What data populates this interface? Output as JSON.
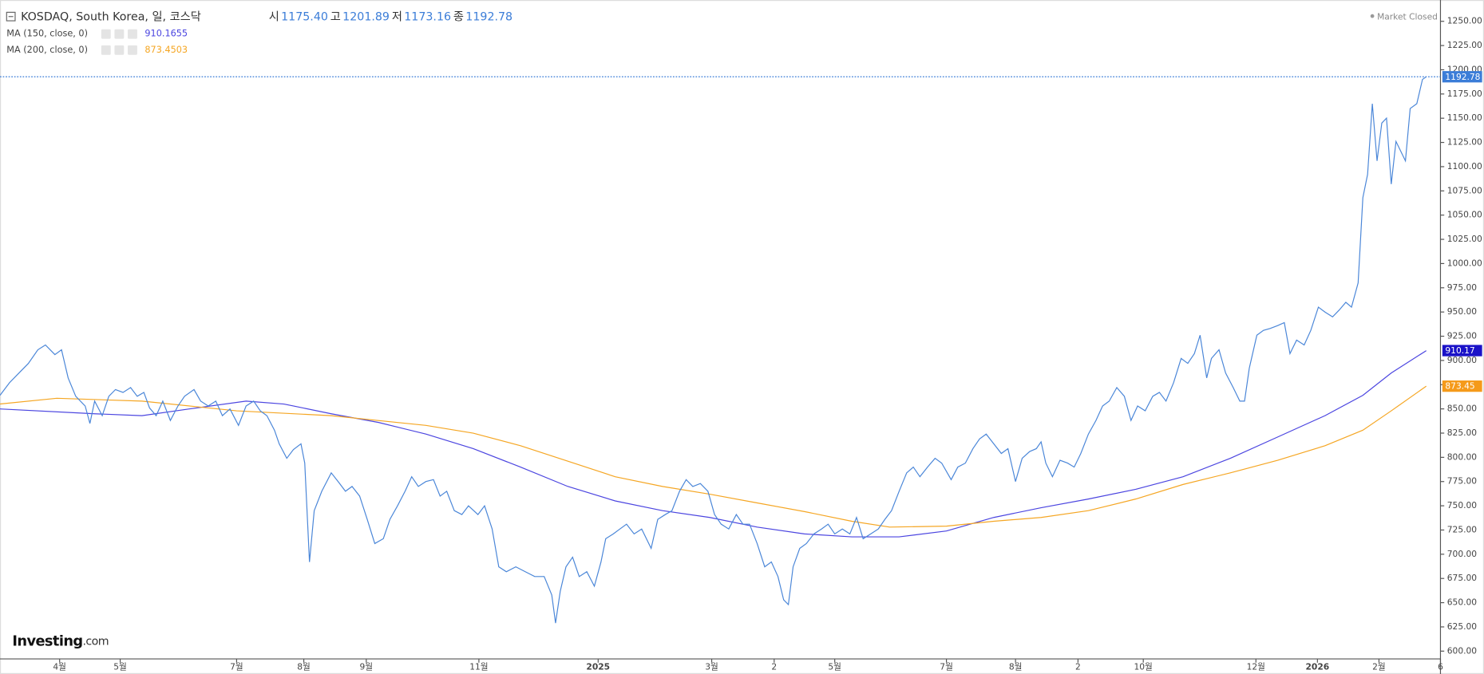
{
  "chart_data": {
    "type": "line",
    "title": "KOSDAQ, South Korea, 일, 코스닥",
    "quote": [
      {
        "label": "시",
        "value": "1175.40"
      },
      {
        "label": "고",
        "value": "1201.89"
      },
      {
        "label": "저",
        "value": "1173.16"
      },
      {
        "label": "종",
        "value": "1192.78"
      }
    ],
    "status": "Market Closed",
    "logo": {
      "main": "Investing",
      "suffix": ".com"
    },
    "series": [
      {
        "color": "#4a86d8",
        "legend_value": "1192.78",
        "x": [
          0,
          10,
          20,
          30,
          40,
          48,
          58,
          65,
          72,
          80,
          90,
          95,
          100,
          108,
          115,
          122,
          130,
          138,
          145,
          152,
          158,
          165,
          172,
          180,
          188,
          195,
          205,
          212,
          220,
          228,
          235,
          243,
          252,
          260,
          268,
          275,
          282,
          290,
          295,
          303,
          310,
          318,
          322,
          327,
          332,
          340,
          350,
          358,
          365,
          372,
          380,
          388,
          396,
          405,
          412,
          420,
          428,
          435,
          442,
          450,
          458,
          465,
          472,
          480,
          488,
          495,
          505,
          512,
          520,
          527,
          535,
          545,
          555,
          565,
          575,
          583,
          587,
          592,
          598,
          605,
          612,
          620,
          628,
          635,
          640,
          648,
          655,
          662,
          670,
          678,
          688,
          695,
          703,
          710,
          718,
          725,
          732,
          740,
          748,
          755,
          762,
          770,
          778,
          785,
          792,
          800,
          808,
          815,
          822,
          828,
          833,
          838,
          845,
          852,
          860,
          868,
          875,
          882,
          890,
          898,
          905,
          912,
          920,
          928,
          935,
          942,
          950,
          958,
          965,
          972,
          980,
          988,
          995,
          1005,
          1012,
          1020,
          1028,
          1035,
          1042,
          1050,
          1058,
          1065,
          1073,
          1080,
          1088,
          1095,
          1100,
          1105,
          1112,
          1120,
          1128,
          1135,
          1142,
          1150,
          1158,
          1165,
          1172,
          1180,
          1188,
          1195,
          1202,
          1210,
          1218,
          1225,
          1232,
          1240,
          1248,
          1255,
          1262,
          1268,
          1275,
          1280,
          1288,
          1295,
          1303,
          1310,
          1315,
          1320,
          1328,
          1335,
          1342,
          1350,
          1357,
          1363,
          1370,
          1378,
          1385,
          1393,
          1400,
          1408,
          1415,
          1422,
          1428,
          1435,
          1440,
          1445,
          1450,
          1455,
          1460,
          1465,
          1470,
          1475,
          1480,
          1485,
          1490,
          1497,
          1503,
          1507
        ],
        "values": [
          864,
          877,
          887,
          897,
          911,
          916,
          906,
          911,
          882,
          863,
          853,
          835,
          858,
          843,
          863,
          870,
          867,
          872,
          863,
          867,
          851,
          843,
          858,
          838,
          853,
          863,
          870,
          858,
          853,
          858,
          843,
          850,
          833,
          853,
          858,
          848,
          843,
          828,
          814,
          799,
          808,
          814,
          794,
          692,
          745,
          765,
          784,
          774,
          765,
          770,
          760,
          736,
          711,
          716,
          736,
          750,
          765,
          780,
          770,
          775,
          777,
          760,
          765,
          745,
          741,
          750,
          741,
          750,
          726,
          687,
          682,
          687,
          682,
          677,
          677,
          658,
          629,
          662,
          687,
          697,
          677,
          682,
          667,
          692,
          716,
          721,
          726,
          731,
          721,
          726,
          706,
          736,
          741,
          745,
          765,
          777,
          770,
          773,
          765,
          741,
          731,
          726,
          741,
          731,
          731,
          711,
          687,
          692,
          677,
          653,
          648,
          687,
          706,
          711,
          721,
          726,
          731,
          721,
          726,
          721,
          738,
          716,
          721,
          726,
          736,
          745,
          765,
          784,
          790,
          780,
          790,
          799,
          794,
          777,
          790,
          794,
          809,
          819,
          824,
          814,
          804,
          809,
          775,
          799,
          806,
          809,
          816,
          794,
          780,
          797,
          794,
          790,
          804,
          824,
          838,
          853,
          858,
          872,
          863,
          838,
          853,
          848,
          863,
          867,
          858,
          877,
          902,
          897,
          907,
          926,
          882,
          902,
          911,
          887,
          872,
          858,
          858,
          892,
          926,
          931,
          933,
          936,
          939,
          907,
          921,
          916,
          931,
          955,
          950,
          945,
          952,
          960,
          955,
          980,
          1068,
          1092,
          1165,
          1106,
          1145,
          1150,
          1082,
          1126,
          1116,
          1106,
          1160,
          1165,
          1190,
          1192.78
        ]
      },
      {
        "name": "MA (150, close, 0)",
        "color": "#4b45e0",
        "legend_value": "910.1655",
        "x": [
          0,
          100,
          150,
          200,
          260,
          300,
          350,
          400,
          450,
          500,
          550,
          600,
          650,
          700,
          750,
          800,
          850,
          900,
          950,
          1000,
          1050,
          1100,
          1150,
          1200,
          1250,
          1300,
          1350,
          1400,
          1440,
          1470,
          1507
        ],
        "values": [
          850,
          845,
          843,
          850,
          858,
          855,
          845,
          836,
          824,
          809,
          790,
          770,
          755,
          745,
          738,
          728,
          721,
          718,
          718,
          724,
          738,
          748,
          757,
          767,
          780,
          799,
          821,
          843,
          864,
          887,
          910.17
        ]
      },
      {
        "name": "MA (200, close, 0)",
        "color": "#f5a623",
        "legend_value": "873.4503",
        "x": [
          0,
          60,
          150,
          250,
          350,
          450,
          500,
          550,
          600,
          650,
          700,
          750,
          800,
          850,
          900,
          940,
          1000,
          1050,
          1100,
          1150,
          1200,
          1250,
          1300,
          1350,
          1400,
          1440,
          1470,
          1507
        ],
        "values": [
          855,
          861,
          858,
          848,
          843,
          833,
          825,
          812,
          796,
          780,
          770,
          762,
          753,
          744,
          734,
          728,
          729,
          734,
          738,
          745,
          757,
          772,
          784,
          797,
          812,
          828,
          848,
          873.45
        ]
      }
    ],
    "price_tags": [
      {
        "value": 1192.78,
        "label": "1192.78",
        "color": "#3b7dd8"
      },
      {
        "value": 910.17,
        "label": "910.17",
        "color": "#1a12c8"
      },
      {
        "value": 873.45,
        "label": "873.45",
        "color": "#f59a1a"
      }
    ],
    "xlim": [
      0,
      1522
    ],
    "xticks": [
      {
        "value": 63,
        "label": "4월"
      },
      {
        "value": 127,
        "label": "5월"
      },
      {
        "value": 250,
        "label": "7월"
      },
      {
        "value": 321,
        "label": "8월"
      },
      {
        "value": 387,
        "label": "9월"
      },
      {
        "value": 506,
        "label": "11월"
      },
      {
        "value": 632,
        "label": "2025"
      },
      {
        "value": 752,
        "label": "3월"
      },
      {
        "value": 818,
        "label": "2"
      },
      {
        "value": 882,
        "label": "5월"
      },
      {
        "value": 1000,
        "label": "7월"
      },
      {
        "value": 1073,
        "label": "8월"
      },
      {
        "value": 1139,
        "label": "2"
      },
      {
        "value": 1208,
        "label": "10월"
      },
      {
        "value": 1327,
        "label": "12월"
      },
      {
        "value": 1392,
        "label": "2026"
      },
      {
        "value": 1457,
        "label": "2월"
      },
      {
        "value": 1522,
        "label": "6"
      }
    ],
    "ylim": [
      592,
      1272
    ],
    "yticks": [
      {
        "value": 600,
        "label": "600.00"
      },
      {
        "value": 625,
        "label": "625.00"
      },
      {
        "value": 650,
        "label": "650.00"
      },
      {
        "value": 675,
        "label": "675.00"
      },
      {
        "value": 700,
        "label": "700.00"
      },
      {
        "value": 725,
        "label": "725.00"
      },
      {
        "value": 750,
        "label": "750.00"
      },
      {
        "value": 775,
        "label": "775.00"
      },
      {
        "value": 800,
        "label": "800.00"
      },
      {
        "value": 825,
        "label": "825.00"
      },
      {
        "value": 850,
        "label": "850.00"
      },
      {
        "value": 875,
        "label": "875.00"
      },
      {
        "value": 900,
        "label": "900.00"
      },
      {
        "value": 925,
        "label": "925.00"
      },
      {
        "value": 950,
        "label": "950.00"
      },
      {
        "value": 975,
        "label": "975.00"
      },
      {
        "value": 1000,
        "label": "1000.00"
      },
      {
        "value": 1025,
        "label": "1025.00"
      },
      {
        "value": 1050,
        "label": "1050.00"
      },
      {
        "value": 1075,
        "label": "1075.00"
      },
      {
        "value": 1100,
        "label": "1100.00"
      },
      {
        "value": 1125,
        "label": "1125.00"
      },
      {
        "value": 1150,
        "label": "1150.00"
      },
      {
        "value": 1175,
        "label": "1175.00"
      },
      {
        "value": 1200,
        "label": "1200.00"
      },
      {
        "value": 1225,
        "label": "1225.00"
      },
      {
        "value": 1250,
        "label": "1250.00"
      }
    ],
    "grid": false
  }
}
